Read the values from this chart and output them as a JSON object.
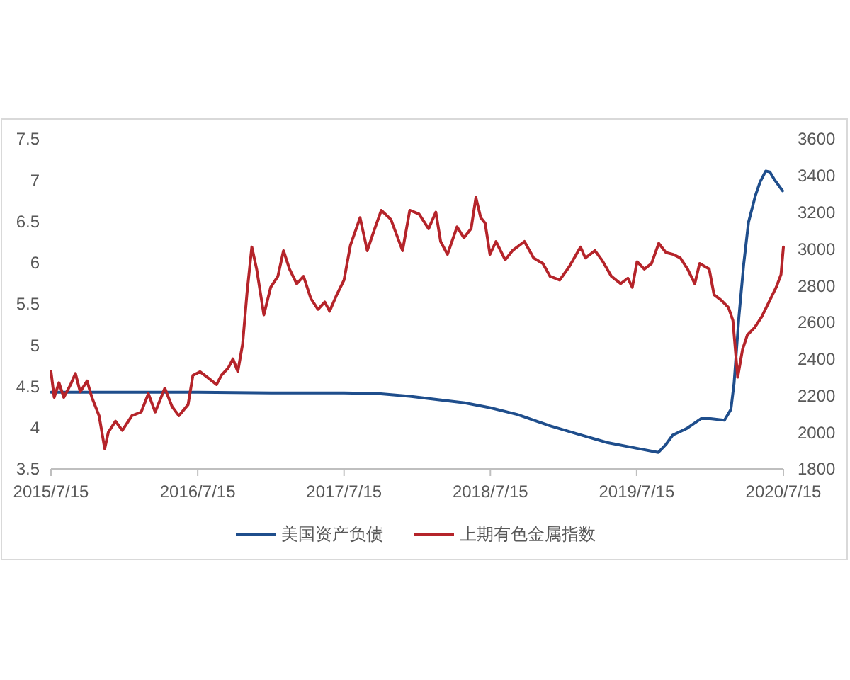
{
  "chart_data": {
    "type": "line",
    "xlim": [
      "2015-07-15",
      "2020-07-15"
    ],
    "xticks": [
      {
        "value": "2015-07-15",
        "label": "2015/7/15"
      },
      {
        "value": "2016-07-15",
        "label": "2016/7/15"
      },
      {
        "value": "2017-07-15",
        "label": "2017/7/15"
      },
      {
        "value": "2018-07-15",
        "label": "2018/7/15"
      },
      {
        "value": "2019-07-15",
        "label": "2019/7/15"
      },
      {
        "value": "2020-07-15",
        "label": "2020/7/15"
      }
    ],
    "ylim": [
      3.5,
      7.5
    ],
    "yticks": [
      3.5,
      4,
      4.5,
      5,
      5.5,
      6,
      6.5,
      7,
      7.5
    ],
    "y2lim": [
      1800,
      3600
    ],
    "y2ticks": [
      1800,
      2000,
      2200,
      2400,
      2600,
      2800,
      3000,
      3200,
      3400,
      3600
    ],
    "legend": "bottom",
    "grid": false,
    "line_style": "solid",
    "series": [
      {
        "name": "美国资产负债",
        "color": "#1f4e8c",
        "x": [
          "2015-07-15",
          "2016-01-15",
          "2016-07-15",
          "2017-01-15",
          "2017-07-15",
          "2017-10-15",
          "2017-12-26",
          "2018-03-06",
          "2018-05-12",
          "2018-07-15",
          "2018-09-20",
          "2018-12-12",
          "2019-02-20",
          "2019-05-02",
          "2019-07-15",
          "2019-09-07",
          "2019-09-25",
          "2019-10-13",
          "2019-11-17",
          "2019-12-23",
          "2020-01-15",
          "2020-02-19",
          "2020-03-06",
          "2020-03-14",
          "2020-03-26",
          "2020-04-07",
          "2020-04-19",
          "2020-05-06",
          "2020-05-18",
          "2020-06-01",
          "2020-06-11",
          "2020-06-22",
          "2020-07-13"
        ],
        "values": [
          4.43,
          4.43,
          4.43,
          4.42,
          4.42,
          4.41,
          4.38,
          4.34,
          4.3,
          4.24,
          4.16,
          4.02,
          3.92,
          3.82,
          3.75,
          3.7,
          3.79,
          3.91,
          3.99,
          4.11,
          4.11,
          4.09,
          4.22,
          4.54,
          5.34,
          5.98,
          6.49,
          6.81,
          6.98,
          7.11,
          7.1,
          7.01,
          6.87
        ]
      },
      {
        "name": "上期有色金属指数",
        "color": "#b5242a",
        "axis": "y2",
        "x": [
          "2015-07-15",
          "2015-07-23",
          "2015-08-04",
          "2015-08-16",
          "2015-09-02",
          "2015-09-14",
          "2015-09-26",
          "2015-10-13",
          "2015-10-25",
          "2015-11-12",
          "2015-11-26",
          "2015-12-05",
          "2015-12-23",
          "2016-01-09",
          "2016-02-02",
          "2016-02-25",
          "2016-03-14",
          "2016-03-31",
          "2016-04-24",
          "2016-05-12",
          "2016-05-29",
          "2016-06-21",
          "2016-07-03",
          "2016-07-21",
          "2016-08-08",
          "2016-08-31",
          "2016-09-12",
          "2016-09-29",
          "2016-10-11",
          "2016-10-23",
          "2016-11-04",
          "2016-11-15",
          "2016-11-27",
          "2016-12-09",
          "2016-12-27",
          "2017-01-13",
          "2017-01-31",
          "2017-02-14",
          "2017-03-01",
          "2017-03-19",
          "2017-04-05",
          "2017-04-23",
          "2017-05-11",
          "2017-05-28",
          "2017-06-09",
          "2017-06-27",
          "2017-07-15",
          "2017-07-31",
          "2017-08-24",
          "2017-09-11",
          "2017-09-28",
          "2017-10-16",
          "2017-11-09",
          "2017-12-08",
          "2017-12-26",
          "2018-01-18",
          "2018-02-11",
          "2018-03-01",
          "2018-03-13",
          "2018-03-30",
          "2018-04-23",
          "2018-05-10",
          "2018-05-28",
          "2018-06-09",
          "2018-06-21",
          "2018-07-02",
          "2018-07-14",
          "2018-07-29",
          "2018-08-21",
          "2018-09-08",
          "2018-10-08",
          "2018-10-31",
          "2018-11-23",
          "2018-12-11",
          "2019-01-04",
          "2019-01-27",
          "2019-02-25",
          "2019-03-09",
          "2019-04-02",
          "2019-04-19",
          "2019-05-13",
          "2019-06-05",
          "2019-06-23",
          "2019-07-04",
          "2019-07-16",
          "2019-08-03",
          "2019-08-21",
          "2019-09-08",
          "2019-09-26",
          "2019-10-14",
          "2019-11-01",
          "2019-11-19",
          "2019-12-07",
          "2019-12-19",
          "2020-01-12",
          "2020-01-24",
          "2020-02-11",
          "2020-02-29",
          "2020-03-11",
          "2020-03-23",
          "2020-04-04",
          "2020-04-16",
          "2020-05-04",
          "2020-05-22",
          "2020-06-09",
          "2020-06-27",
          "2020-07-09",
          "2020-07-15"
        ],
        "values": [
          2330,
          2190,
          2270,
          2190,
          2260,
          2320,
          2220,
          2280,
          2190,
          2090,
          1910,
          2000,
          2060,
          2010,
          2090,
          2110,
          2210,
          2110,
          2240,
          2140,
          2090,
          2150,
          2310,
          2330,
          2300,
          2260,
          2310,
          2350,
          2400,
          2330,
          2480,
          2760,
          3010,
          2890,
          2640,
          2790,
          2850,
          2990,
          2890,
          2810,
          2850,
          2730,
          2670,
          2710,
          2660,
          2750,
          2830,
          3020,
          3170,
          2990,
          3100,
          3210,
          3160,
          2990,
          3210,
          3190,
          3110,
          3200,
          3040,
          2970,
          3120,
          3060,
          3110,
          3280,
          3170,
          3140,
          2970,
          3040,
          2940,
          2990,
          3040,
          2950,
          2920,
          2850,
          2830,
          2900,
          3010,
          2950,
          2990,
          2940,
          2850,
          2810,
          2840,
          2790,
          2930,
          2890,
          2920,
          3030,
          2980,
          2970,
          2950,
          2890,
          2810,
          2920,
          2890,
          2750,
          2720,
          2680,
          2610,
          2300,
          2450,
          2530,
          2570,
          2630,
          2710,
          2790,
          2860,
          3010
        ]
      }
    ]
  }
}
